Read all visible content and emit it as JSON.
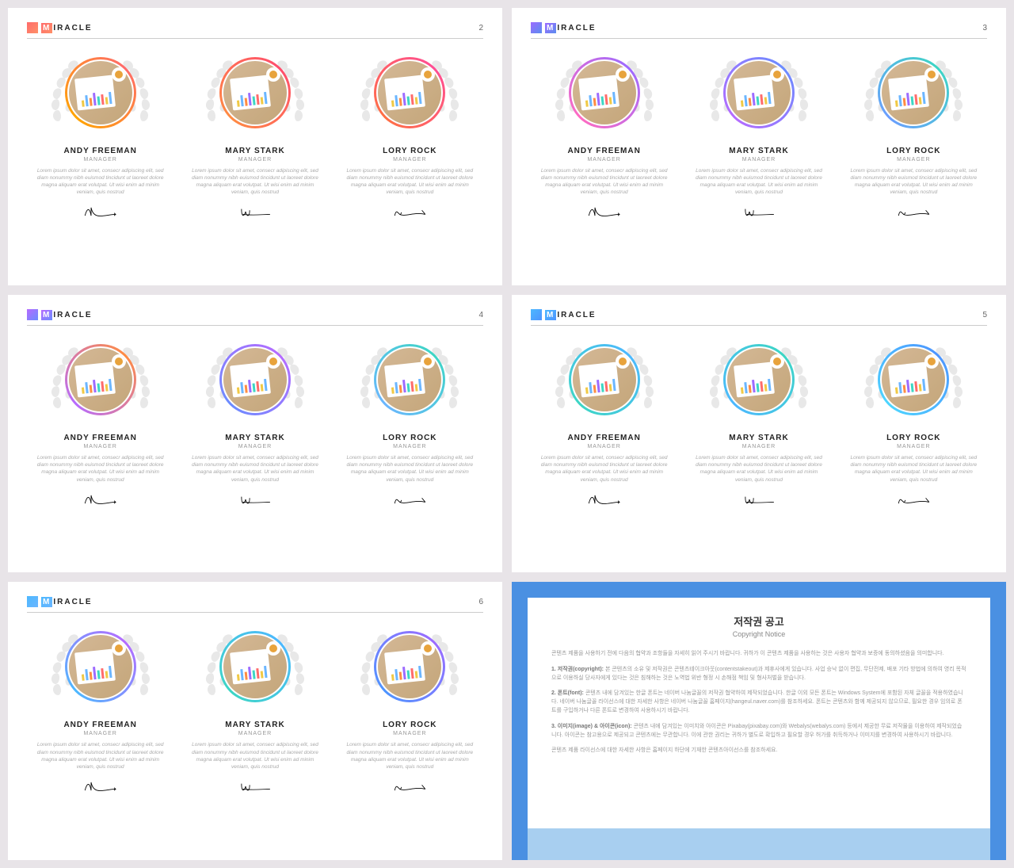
{
  "brand": "IRACLE",
  "slides": [
    {
      "page": "2",
      "logo_gradient": [
        "#ff6b6b",
        "#ff9068"
      ],
      "people": [
        {
          "name": "ANDY FREEMAN",
          "role": "MANAGER",
          "ring": [
            "#ff6b6b",
            "#ffa500"
          ],
          "sig": 0
        },
        {
          "name": "MARY STARK",
          "role": "MANAGER",
          "ring": [
            "#ff4d6d",
            "#ff8c42"
          ],
          "sig": 1
        },
        {
          "name": "LORY ROCK",
          "role": "MANAGER",
          "ring": [
            "#ff4d94",
            "#ff7043"
          ],
          "sig": 2
        }
      ]
    },
    {
      "page": "3",
      "logo_gradient": [
        "#9d6bff",
        "#5b8def"
      ],
      "people": [
        {
          "name": "ANDY FREEMAN",
          "role": "MANAGER",
          "ring": [
            "#9d6bff",
            "#ff6bc1"
          ],
          "sig": 0
        },
        {
          "name": "MARY STARK",
          "role": "MANAGER",
          "ring": [
            "#6b8cff",
            "#b66bff"
          ],
          "sig": 1
        },
        {
          "name": "LORY ROCK",
          "role": "MANAGER",
          "ring": [
            "#3dd6c4",
            "#6b9dff"
          ],
          "sig": 2
        }
      ]
    },
    {
      "page": "4",
      "logo_gradient": [
        "#b66bff",
        "#6b8cff"
      ],
      "people": [
        {
          "name": "ANDY FREEMAN",
          "role": "MANAGER",
          "ring": [
            "#ff8c42",
            "#b66bff"
          ],
          "sig": 0
        },
        {
          "name": "MARY STARK",
          "role": "MANAGER",
          "ring": [
            "#b66bff",
            "#6b8cff"
          ],
          "sig": 1
        },
        {
          "name": "LORY ROCK",
          "role": "MANAGER",
          "ring": [
            "#3dd6c4",
            "#6bb6ff"
          ],
          "sig": 2
        }
      ]
    },
    {
      "page": "5",
      "logo_gradient": [
        "#4db8ff",
        "#4d94ff"
      ],
      "people": [
        {
          "name": "ANDY FREEMAN",
          "role": "MANAGER",
          "ring": [
            "#4db8ff",
            "#3dd6c4"
          ],
          "sig": 0
        },
        {
          "name": "MARY STARK",
          "role": "MANAGER",
          "ring": [
            "#3dd6c4",
            "#4db8ff"
          ],
          "sig": 1
        },
        {
          "name": "LORY ROCK",
          "role": "MANAGER",
          "ring": [
            "#4d94ff",
            "#4dd6ff"
          ],
          "sig": 2
        }
      ]
    },
    {
      "page": "6",
      "logo_gradient": [
        "#4db8ff",
        "#6bb6ff"
      ],
      "people": [
        {
          "name": "ANDY FREEMAN",
          "role": "MANAGER",
          "ring": [
            "#b66bff",
            "#4db8ff"
          ],
          "sig": 0
        },
        {
          "name": "MARY STARK",
          "role": "MANAGER",
          "ring": [
            "#4db8ff",
            "#3dd6c4"
          ],
          "sig": 1
        },
        {
          "name": "LORY ROCK",
          "role": "MANAGER",
          "ring": [
            "#9d6bff",
            "#4d94ff"
          ],
          "sig": 2
        }
      ]
    }
  ],
  "desc_text": "Lorem ipsum dolor sit amet, consecr adipiscing elit, sed diam nonummy nibh euismod tincidunt ut laoreet dolore magna aliquam erat volutpat. Ut wisi enim ad minim veniam, quis nostrud",
  "chart_colors": [
    "#f0c945",
    "#6bb6ff",
    "#ff8c42",
    "#9d6bff",
    "#3dd6c4",
    "#ff6b6b"
  ],
  "copyright": {
    "title": "저작권 공고",
    "subtitle": "Copyright Notice",
    "intro": "콘텐츠 제품을 사용하기 전에 다음의 협약과 조항들을 자세히 읽어 주시기 바랍니다. 귀하가 이 콘텐츠 제품을 사용하는 것은 사용자 협약과 보증에 동의하셨음을 의미합니다.",
    "p1_label": "1. 저작권(copyright):",
    "p1": "본 콘텐츠의 소유 및 저작권은 콘텐츠테이크아웃(contentstakeout)과 제휴사에게 있습니다. 사업 승낙 없이 편집, 무단전제, 배포 기타 방법에 의하여 영리 목적으로 이용하실 당사자에게 있다는 것은 침해하는 것은 노역법 위반 형정 시 손해점 책임 및 형사처벌을 받습니다.",
    "p2_label": "2. 폰트(font):",
    "p2": "콘텐츠 내에 담겨있는 한글 폰트는 네이버 나눔글꼴의 저작권 협약하여 제작되었습니다. 한글 이외 모든 폰트는 Windows System에 포함된 자체 글꼴을 적용하였습니다. 네이버 나눔글꼴 라이선스에 대한 자세한 사항은 네이버 나눔글꼴 홈페이지(hangeul.naver.com)를 참조하세요. 폰트는 콘텐츠와 함께 제공되지 않으므로, 필요한 경우 임의로 폰트를 구입하거나 다른 폰트로 변경하여 사용하시기 바랍니다.",
    "p3_label": "3. 이미지(image) & 아이콘(icon):",
    "p3": "콘텐츠 내에 담겨있는 이미치와 아이콘은 Pixabay(pixabay.com)와 Webalys(webalys.com) 등에서 제공한 무료 저작물을 이용하여 제작되었습니다. 아이콘는 참고용으로 제공되고 콘텐츠에는 무관합니다. 이에 관한 권리는 귀하가 별도로 확입하고 필요할 경우 허가를 취득하거나 이미지를 변경하여 사용하시기 바랍니다.",
    "footer": "콘텐츠 제품 라이선스에 대한 자세한 사항은 홈페이지 하단에 기재한 콘텐츠아이선스를 참조하세요."
  }
}
